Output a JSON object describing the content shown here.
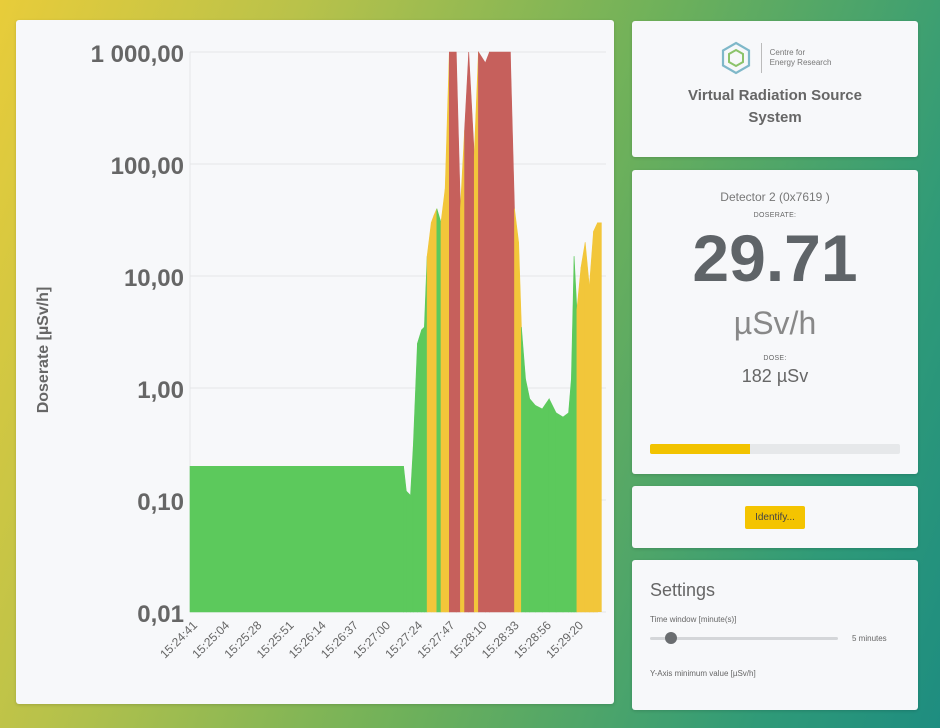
{
  "chart_data": {
    "type": "area",
    "ylabel": "Doserate [µSv/h]",
    "xlabel": "",
    "y_scale": "log",
    "ylim": [
      0.01,
      1000
    ],
    "y_ticks": [
      {
        "value": 0.01,
        "label": "0,01"
      },
      {
        "value": 0.1,
        "label": "0,10"
      },
      {
        "value": 1,
        "label": "1,00"
      },
      {
        "value": 10,
        "label": "10,00"
      },
      {
        "value": 100,
        "label": "100,00"
      },
      {
        "value": 1000,
        "label": "1 000,00"
      }
    ],
    "x_ticks": [
      "15:24:41",
      "15:25:04",
      "15:25:28",
      "15:25:51",
      "15:26:14",
      "15:26:37",
      "15:27:00",
      "15:27:24",
      "15:27:47",
      "15:28:10",
      "15:28:33",
      "15:28:56",
      "15:29:20"
    ],
    "x_range": [
      "15:24:41",
      "15:29:41"
    ],
    "grid": true,
    "colors": {
      "green": "#5cc95c",
      "yellow": "#f2c63a",
      "red": "#c6605c"
    },
    "series": [
      {
        "values": [
          [
            "15:24:41",
            0.2,
            "green"
          ],
          [
            "15:27:15",
            0.2,
            "green"
          ],
          [
            "15:27:17",
            0.12,
            "green"
          ],
          [
            "15:27:20",
            0.11,
            "green"
          ],
          [
            "15:27:22",
            0.3,
            "green"
          ],
          [
            "15:27:25",
            2.5,
            "green"
          ],
          [
            "15:27:28",
            3.3,
            "green"
          ],
          [
            "15:27:30",
            3.5,
            "green"
          ],
          [
            "15:27:32",
            15,
            "yellow"
          ],
          [
            "15:27:35",
            30,
            "yellow"
          ],
          [
            "15:27:37",
            35,
            "yellow"
          ],
          [
            "15:27:39",
            40,
            "green"
          ],
          [
            "15:27:42",
            30,
            "yellow"
          ],
          [
            "15:27:45",
            60,
            "yellow"
          ],
          [
            "15:27:48",
            1000,
            "red"
          ],
          [
            "15:27:53",
            1000,
            "red"
          ],
          [
            "15:27:56",
            40,
            "yellow"
          ],
          [
            "15:27:59",
            200,
            "red"
          ],
          [
            "15:28:02",
            1000,
            "red"
          ],
          [
            "15:28:06",
            120,
            "yellow"
          ],
          [
            "15:28:09",
            1000,
            "red"
          ],
          [
            "15:28:14",
            800,
            "red"
          ],
          [
            "15:28:17",
            1000,
            "red"
          ],
          [
            "15:28:32",
            1000,
            "red"
          ],
          [
            "15:28:35",
            40,
            "yellow"
          ],
          [
            "15:28:38",
            20,
            "yellow"
          ],
          [
            "15:28:40",
            3.5,
            "green"
          ],
          [
            "15:28:43",
            1.2,
            "green"
          ],
          [
            "15:28:46",
            0.8,
            "green"
          ],
          [
            "15:28:50",
            0.7,
            "green"
          ],
          [
            "15:28:55",
            0.65,
            "green"
          ],
          [
            "15:29:00",
            0.8,
            "green"
          ],
          [
            "15:29:05",
            0.6,
            "green"
          ],
          [
            "15:29:10",
            0.55,
            "green"
          ],
          [
            "15:29:14",
            0.6,
            "green"
          ],
          [
            "15:29:16",
            1.2,
            "green"
          ],
          [
            "15:29:18",
            15,
            "green"
          ],
          [
            "15:29:20",
            5,
            "yellow"
          ],
          [
            "15:29:23",
            12,
            "yellow"
          ],
          [
            "15:29:26",
            20,
            "yellow"
          ],
          [
            "15:29:29",
            8,
            "yellow"
          ],
          [
            "15:29:32",
            25,
            "yellow"
          ],
          [
            "15:29:35",
            30,
            "yellow"
          ]
        ]
      }
    ]
  },
  "logo": {
    "line1": "Centre for",
    "line2": "Energy Research",
    "icon": "hexagon-logo-icon"
  },
  "app_title_line1": "Virtual Radiation Source",
  "app_title_line2": "System",
  "detector": {
    "name": "Detector 2 (0x7619 )",
    "doserate_label": "DOSERATE:",
    "doserate_value": "29.71",
    "doserate_unit": "µSv/h",
    "dose_label": "DOSE:",
    "dose_value": "182 µSv",
    "progress": 0.4
  },
  "identify_label": "Identify...",
  "settings": {
    "title": "Settings",
    "time_window_label": "Time window [minute(s)]",
    "time_window_value": "5 minutes",
    "time_window_position": 0.08,
    "y_axis_min_label": "Y-Axis minimum value [µSv/h]"
  }
}
